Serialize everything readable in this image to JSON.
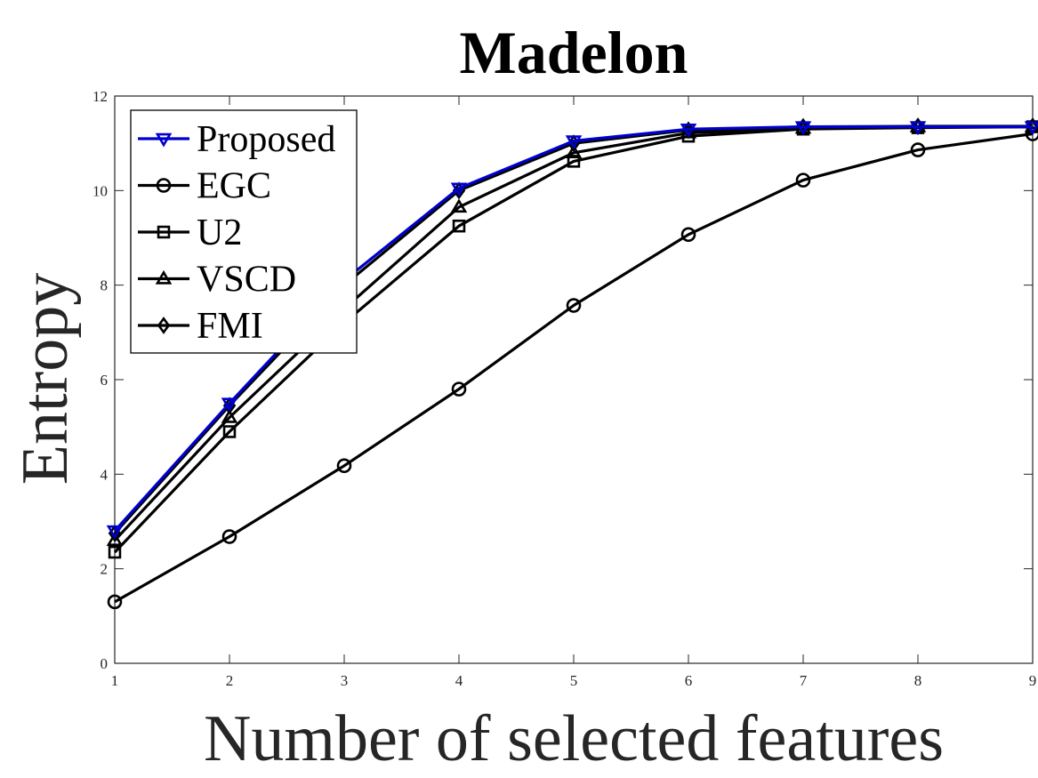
{
  "chart_data": {
    "type": "line",
    "title": "Madelon",
    "xlabel": "Number of selected features",
    "ylabel": "Entropy",
    "xlim": [
      1,
      9
    ],
    "ylim": [
      0,
      12
    ],
    "x_ticks": [
      "1",
      "2",
      "3",
      "4",
      "5",
      "6",
      "7",
      "8",
      "9"
    ],
    "y_ticks": [
      "0",
      "2",
      "4",
      "6",
      "8",
      "10",
      "12"
    ],
    "grid": false,
    "legend_position": "top-left",
    "x": [
      1,
      2,
      3,
      4,
      5,
      6,
      7,
      8,
      9
    ],
    "series": [
      {
        "name": "Proposed",
        "marker": "triangle-down",
        "color": "#0000cc",
        "values": [
          2.8,
          5.5,
          8.1,
          10.05,
          11.05,
          11.3,
          11.35,
          11.35,
          11.35
        ]
      },
      {
        "name": "EGC",
        "marker": "circle",
        "color": "#000000",
        "values": [
          1.3,
          2.68,
          4.18,
          5.8,
          7.57,
          9.07,
          10.22,
          10.86,
          11.2
        ]
      },
      {
        "name": "U2",
        "marker": "square",
        "color": "#000000",
        "values": [
          2.35,
          4.9,
          7.2,
          9.25,
          10.62,
          11.15,
          11.3,
          11.33,
          11.35
        ]
      },
      {
        "name": "VSCD",
        "marker": "triangle-up",
        "color": "#000000",
        "values": [
          2.6,
          5.2,
          7.5,
          9.65,
          10.8,
          11.22,
          11.32,
          11.35,
          11.35
        ]
      },
      {
        "name": "FMI",
        "marker": "diamond",
        "color": "#000000",
        "values": [
          2.75,
          5.45,
          8.0,
          10.0,
          11.0,
          11.28,
          11.35,
          11.36,
          11.36
        ]
      }
    ]
  }
}
